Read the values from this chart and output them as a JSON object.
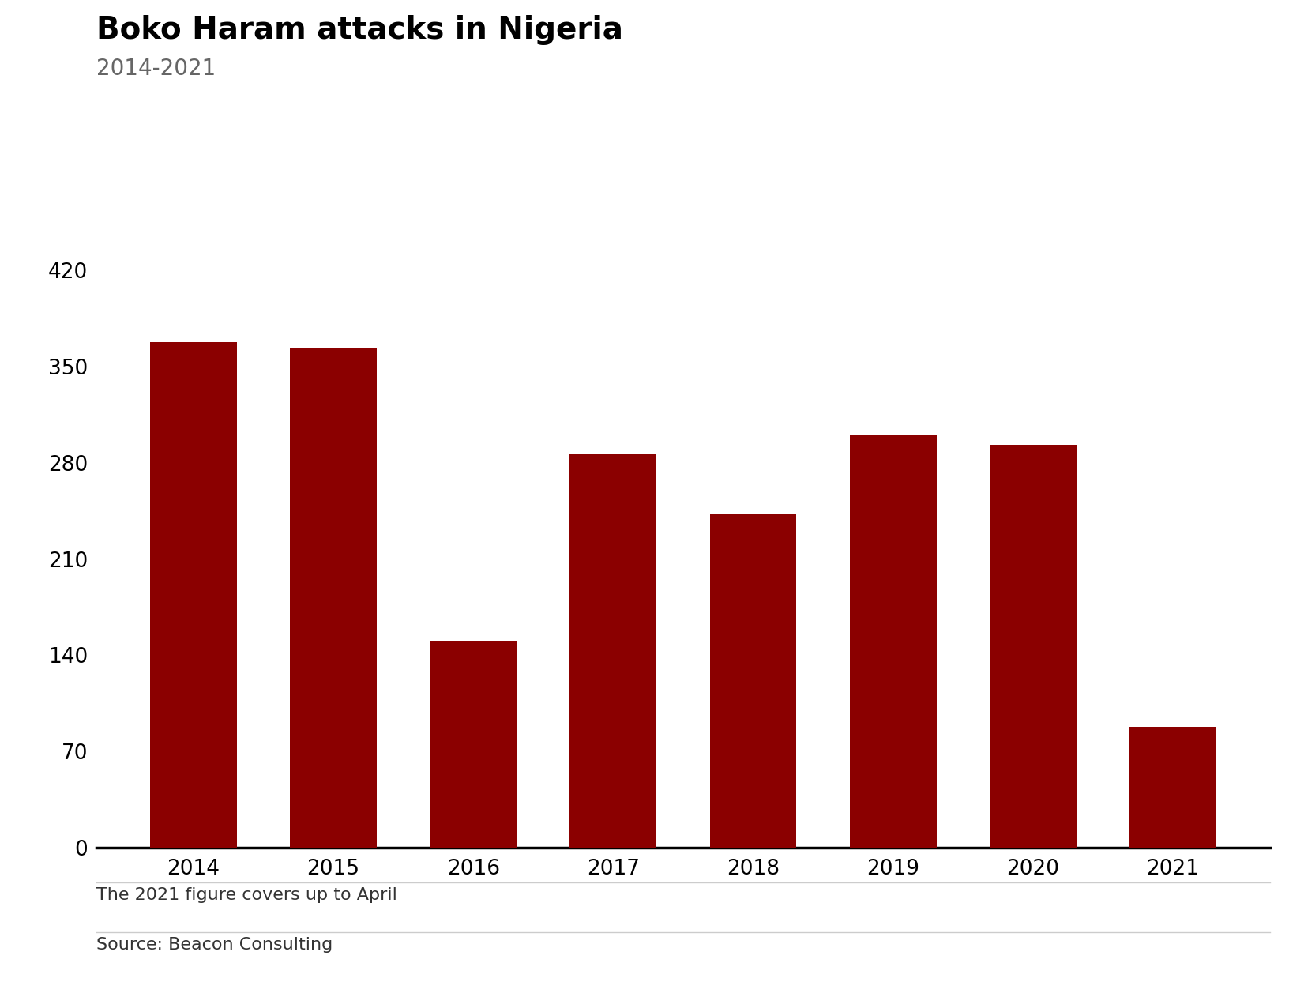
{
  "title": "Boko Haram attacks in Nigeria",
  "subtitle": "2014-2021",
  "categories": [
    "2014",
    "2015",
    "2016",
    "2017",
    "2018",
    "2019",
    "2020",
    "2021"
  ],
  "values": [
    368,
    364,
    150,
    286,
    243,
    300,
    293,
    88
  ],
  "bar_color": "#8B0000",
  "background_color": "#ffffff",
  "yticks": [
    0,
    70,
    140,
    210,
    280,
    350,
    420
  ],
  "ylim": [
    0,
    450
  ],
  "footnote": "The 2021 figure covers up to April",
  "source": "Source: Beacon Consulting",
  "title_fontsize": 28,
  "subtitle_fontsize": 20,
  "tick_fontsize": 19,
  "footnote_fontsize": 16,
  "source_fontsize": 16,
  "bar_width": 0.62
}
